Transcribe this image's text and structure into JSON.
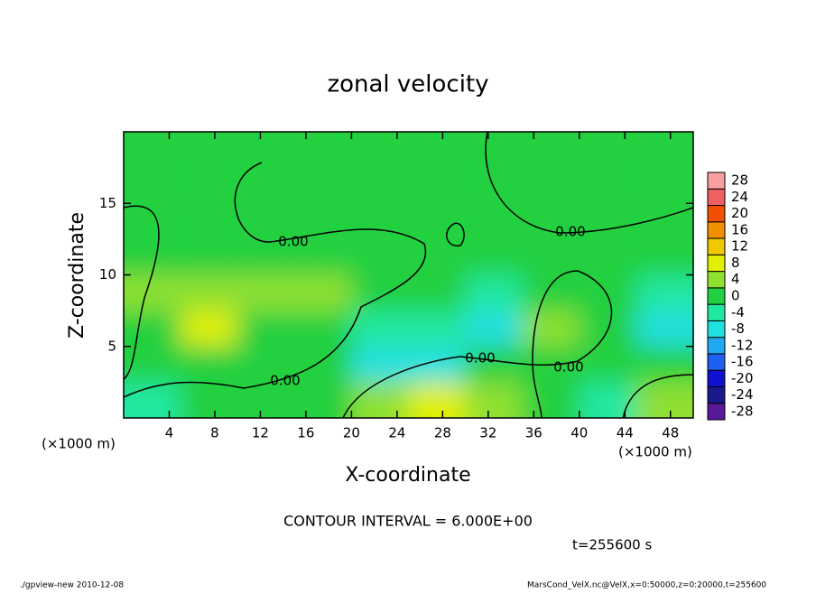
{
  "chart_data": {
    "type": "contour",
    "title": "zonal velocity",
    "xlabel": "X-coordinate",
    "ylabel": "Z-coordinate",
    "x_unit_left": "(×1000 m)",
    "x_unit_right": "(×1000 m)",
    "xlim": [
      0,
      50
    ],
    "xticks": [
      4,
      8,
      12,
      16,
      20,
      24,
      28,
      32,
      36,
      40,
      44,
      48
    ],
    "ylim": [
      0,
      20
    ],
    "yticks": [
      5,
      10,
      15
    ],
    "x": [
      2.5,
      7.5,
      12.5,
      17.5,
      22.5,
      27.5,
      32.5,
      37.5,
      42.5,
      47.5
    ],
    "z": [
      1.25,
      3.75,
      6.25,
      8.75,
      11.25,
      13.75,
      16.25,
      18.75
    ],
    "values": [
      [
        -2,
        0,
        2,
        0,
        6,
        10,
        4,
        2,
        -4,
        4
      ],
      [
        2,
        2,
        2,
        0,
        -8,
        -6,
        0,
        0,
        0,
        0
      ],
      [
        2,
        8,
        2,
        2,
        -2,
        -2,
        -6,
        6,
        0,
        -6
      ],
      [
        4,
        6,
        4,
        4,
        2,
        0,
        -2,
        2,
        0,
        -2
      ],
      [
        2,
        2,
        2,
        2,
        2,
        0,
        0,
        0,
        2,
        0
      ],
      [
        2,
        2,
        0,
        0,
        0,
        0,
        0,
        0,
        0,
        0
      ],
      [
        2,
        2,
        0,
        0,
        0,
        0,
        0,
        2,
        2,
        2
      ],
      [
        2,
        2,
        2,
        2,
        2,
        0,
        0,
        2,
        2,
        2
      ]
    ],
    "colorbar": {
      "ticks": [
        -28,
        -24,
        -20,
        -16,
        -12,
        -8,
        -4,
        0,
        4,
        8,
        12,
        16,
        20,
        24,
        28
      ],
      "colors": [
        "#5a189a",
        "#1a1a8c",
        "#1010d0",
        "#2060f0",
        "#20a8f0",
        "#20e0e0",
        "#20e8a0",
        "#20d040",
        "#90e030",
        "#e0f000",
        "#f0c800",
        "#f09000",
        "#f05000",
        "#f06060",
        "#f8a0a0"
      ]
    },
    "contour_labels": [
      "0.00",
      "0.00",
      "0.00",
      "0.00",
      "0.00"
    ],
    "contour_interval": "CONTOUR INTERVAL = 6.000E+00",
    "time": "t=255600 s",
    "footer_left": "./gpview-new  2010-12-08",
    "footer_right": "MarsCond_VelX.nc@VelX,x=0:50000,z=0:20000,t=255600"
  }
}
